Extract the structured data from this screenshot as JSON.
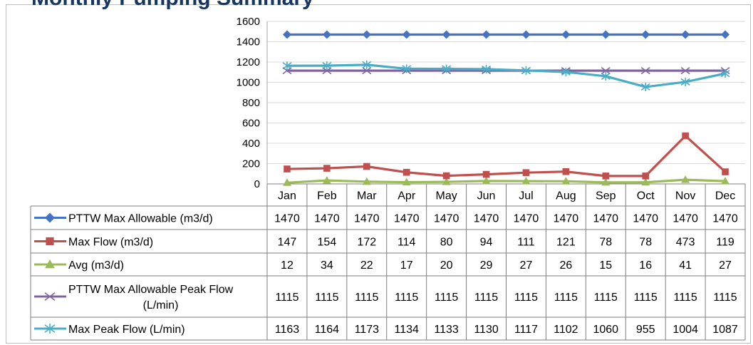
{
  "chart_data": {
    "type": "line",
    "categories": [
      "Jan",
      "Feb",
      "Mar",
      "Apr",
      "May",
      "Jun",
      "Jul",
      "Aug",
      "Sep",
      "Oct",
      "Nov",
      "Dec"
    ],
    "ylim": [
      0,
      1600
    ],
    "yticks": [
      0,
      200,
      400,
      600,
      800,
      1000,
      1200,
      1400,
      1600
    ],
    "grid": true,
    "legend": "table-below",
    "series": [
      {
        "name": "PTTW Max Allowable (m3/d)",
        "color": "#4472c4",
        "marker": "diamond",
        "values": [
          1470,
          1470,
          1470,
          1470,
          1470,
          1470,
          1470,
          1470,
          1470,
          1470,
          1470,
          1470
        ]
      },
      {
        "name": "Max Flow (m3/d)",
        "color": "#c0504d",
        "marker": "square",
        "values": [
          147,
          154,
          172,
          114,
          80,
          94,
          111,
          121,
          78,
          78,
          473,
          119
        ]
      },
      {
        "name": "Avg (m3/d)",
        "color": "#9bbb59",
        "marker": "triangle",
        "values": [
          12,
          34,
          22,
          17,
          20,
          29,
          27,
          26,
          15,
          16,
          41,
          27
        ]
      },
      {
        "name": "PTTW Max Allowable Peak Flow (L/min)",
        "color": "#8064a2",
        "marker": "x",
        "values": [
          1115,
          1115,
          1115,
          1115,
          1115,
          1115,
          1115,
          1115,
          1115,
          1115,
          1115,
          1115
        ]
      },
      {
        "name": "Max Peak Flow (L/min)",
        "color": "#4bacc6",
        "marker": "star",
        "values": [
          1163,
          1164,
          1173,
          1134,
          1133,
          1130,
          1117,
          1102,
          1060,
          955,
          1004,
          1087
        ]
      }
    ]
  },
  "title_fragment": "Monthly Pumping Summary"
}
